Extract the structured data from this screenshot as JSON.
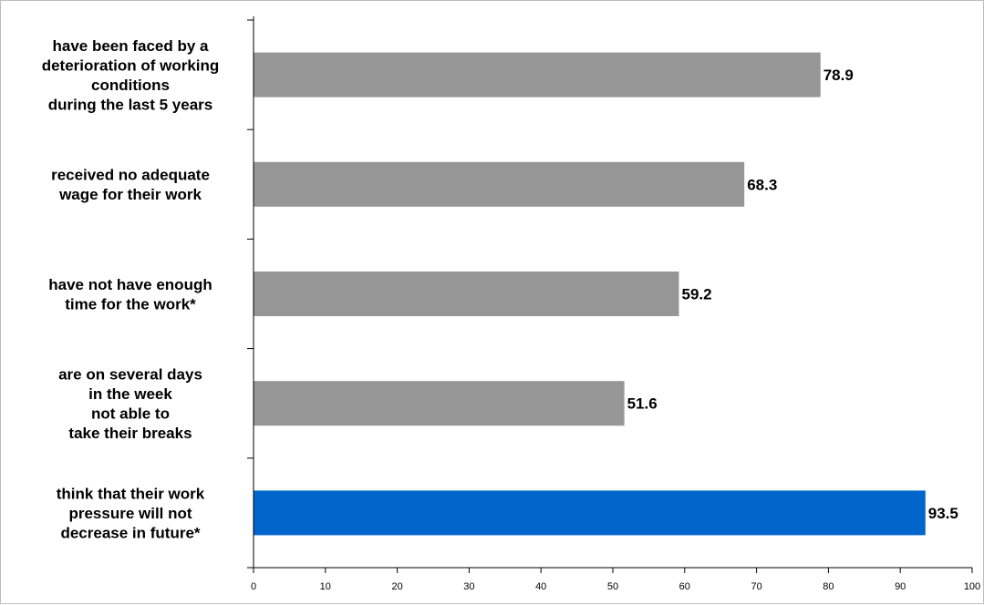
{
  "chart_data": {
    "type": "bar",
    "orientation": "horizontal",
    "categories": [
      [
        "have been faced by a",
        "deterioration of working",
        "conditions",
        "during the last 5 years"
      ],
      [
        "received no adequate",
        "wage  for their work"
      ],
      [
        "have not have enough",
        "time for the work*"
      ],
      [
        "are on several days",
        "in the week",
        "not able to",
        "take their breaks"
      ],
      [
        "think that their work",
        "pressure will not",
        "decrease in future*"
      ]
    ],
    "values": [
      78.9,
      68.3,
      59.2,
      51.6,
      93.5
    ],
    "data_labels": [
      "78.9",
      "68.3",
      "59.2",
      "51.6",
      "93.5"
    ],
    "colors": [
      "#969696",
      "#969696",
      "#969696",
      "#969696",
      "#0066cc"
    ],
    "xlim": [
      0,
      100
    ],
    "xticks": [
      0,
      10,
      20,
      30,
      40,
      50,
      60,
      70,
      80,
      90,
      100
    ],
    "grid": false,
    "legend": "none",
    "title": "",
    "xlabel": "",
    "ylabel": ""
  }
}
